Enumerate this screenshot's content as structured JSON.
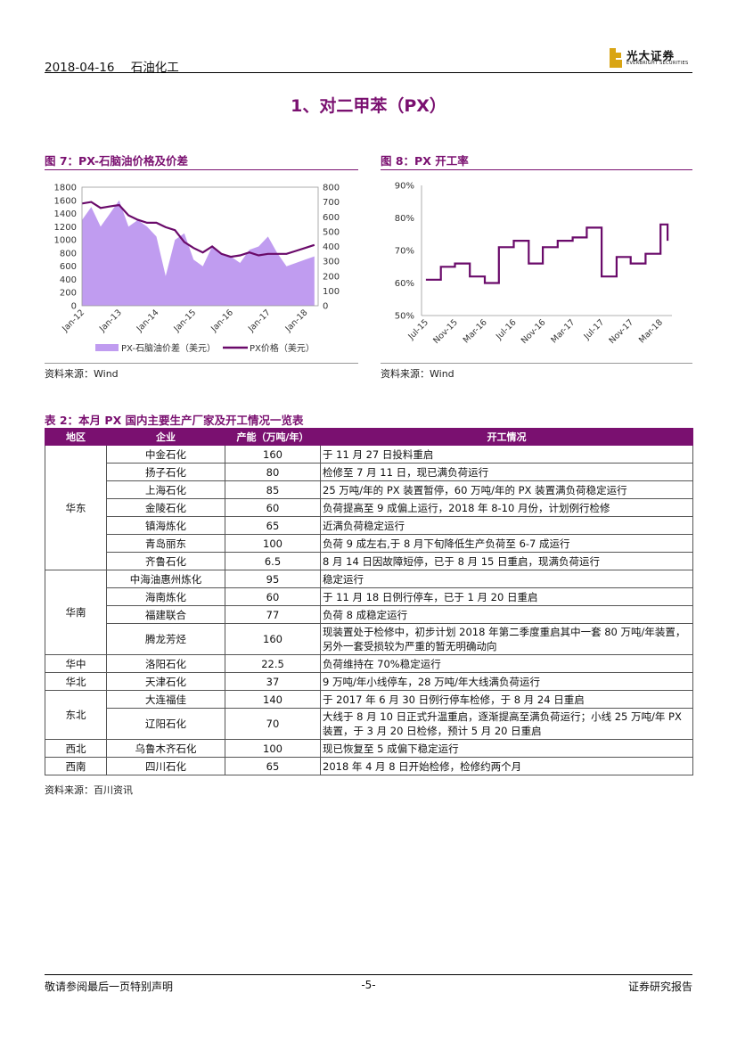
{
  "header": {
    "date": "2018-04-16",
    "category": "石油化工",
    "logo_cn": "光大证券",
    "logo_en": "EVERBRIGHT SECURITIES"
  },
  "section_title": "1、对二甲苯（PX）",
  "fig7": {
    "title": "图 7：PX-石脑油价格及价差",
    "source": "资料来源：Wind"
  },
  "fig8": {
    "title": "图 8：PX 开工率",
    "source": "资料来源：Wind"
  },
  "chart_data": [
    {
      "type": "area+line",
      "title": "",
      "x_ticks": [
        "Jan-12",
        "Jan-13",
        "Jan-14",
        "Jan-15",
        "Jan-16",
        "Jan-17",
        "Jan-18"
      ],
      "y_left_ticks": [
        "0",
        "200",
        "400",
        "600",
        "800",
        "1000",
        "1200",
        "1400",
        "1600",
        "1800"
      ],
      "y_left_range": [
        0,
        1800
      ],
      "y_right_ticks": [
        "0",
        "100",
        "200",
        "300",
        "400",
        "500",
        "600",
        "700",
        "800"
      ],
      "y_right_range": [
        0,
        800
      ],
      "series": [
        {
          "name": "PX-石脑油价差（美元）",
          "axis": "left",
          "color": "#c09cf0",
          "x": [
            2012.0,
            2012.25,
            2012.5,
            2012.75,
            2013.0,
            2013.25,
            2013.5,
            2013.75,
            2014.0,
            2014.25,
            2014.5,
            2014.75,
            2015.0,
            2015.25,
            2015.5,
            2015.75,
            2016.0,
            2016.25,
            2016.5,
            2016.75,
            2017.0,
            2017.25,
            2017.5,
            2017.75,
            2018.0,
            2018.25
          ],
          "values": [
            1300,
            1500,
            1200,
            1400,
            1600,
            1200,
            1300,
            1200,
            1050,
            450,
            1000,
            1100,
            700,
            600,
            900,
            800,
            750,
            650,
            850,
            900,
            1050,
            800,
            600,
            650,
            700,
            750
          ]
        },
        {
          "name": "PX价格（美元）",
          "axis": "right",
          "color": "#6a0a6a",
          "x": [
            2012.0,
            2012.25,
            2012.5,
            2012.75,
            2013.0,
            2013.25,
            2013.5,
            2013.75,
            2014.0,
            2014.25,
            2014.5,
            2014.75,
            2015.0,
            2015.25,
            2015.5,
            2015.75,
            2016.0,
            2016.25,
            2016.5,
            2016.75,
            2017.0,
            2017.25,
            2017.5,
            2017.75,
            2018.0,
            2018.25
          ],
          "values": [
            690,
            700,
            660,
            670,
            680,
            610,
            580,
            560,
            560,
            530,
            510,
            430,
            390,
            360,
            400,
            350,
            330,
            340,
            360,
            340,
            350,
            350,
            350,
            370,
            390,
            410
          ]
        }
      ]
    },
    {
      "type": "line",
      "title": "",
      "x_ticks": [
        "Jul-15",
        "Nov-15",
        "Mar-16",
        "Jul-16",
        "Nov-16",
        "Mar-17",
        "Jul-17",
        "Nov-17",
        "Mar-18"
      ],
      "y_ticks": [
        "50%",
        "60%",
        "70%",
        "80%",
        "90%"
      ],
      "y_range": [
        50,
        90
      ],
      "series": [
        {
          "name": "PX开工率",
          "color": "#6a0a6a",
          "x": [
            2015.5,
            2015.67,
            2015.83,
            2016.0,
            2016.17,
            2016.33,
            2016.5,
            2016.67,
            2016.83,
            2017.0,
            2017.17,
            2017.33,
            2017.5,
            2017.67,
            2017.83,
            2018.0,
            2018.17,
            2018.25
          ],
          "values": [
            61,
            65,
            66,
            62,
            60,
            71,
            73,
            66,
            71,
            73,
            74,
            77,
            62,
            68,
            66,
            69,
            78,
            73
          ]
        }
      ]
    }
  ],
  "table": {
    "title": "表 2：本月 PX 国内主要生产厂家及开工情况一览表",
    "headers": [
      "地区",
      "企业",
      "产能（万吨/年）",
      "开工情况"
    ],
    "groups": [
      {
        "region": "华东",
        "rows": [
          {
            "company": "中金石化",
            "capacity": "160",
            "status": "于 11 月 27 日投料重启"
          },
          {
            "company": "扬子石化",
            "capacity": "80",
            "status": "检修至 7 月 11 日，现已满负荷运行"
          },
          {
            "company": "上海石化",
            "capacity": "85",
            "status": "25 万吨/年的 PX 装置暂停，60 万吨/年的 PX 装置满负荷稳定运行"
          },
          {
            "company": "金陵石化",
            "capacity": "60",
            "status": "负荷提高至 9 成偏上运行，2018 年 8-10 月份，计划例行检修"
          },
          {
            "company": "镇海炼化",
            "capacity": "65",
            "status": "近满负荷稳定运行"
          },
          {
            "company": "青岛丽东",
            "capacity": "100",
            "status": "负荷 9 成左右,于 8 月下旬降低生产负荷至 6-7 成运行"
          },
          {
            "company": "齐鲁石化",
            "capacity": "6.5",
            "status": "8 月 14 日因故障短停，已于 8 月 15 日重启，现满负荷运行"
          }
        ]
      },
      {
        "region": "华南",
        "rows": [
          {
            "company": "中海油惠州炼化",
            "capacity": "95",
            "status": "稳定运行"
          },
          {
            "company": "海南炼化",
            "capacity": "60",
            "status": "于 11 月 18 日例行停车，已于 1 月 20 日重启"
          },
          {
            "company": "福建联合",
            "capacity": "77",
            "status": "负荷 8 成稳定运行"
          },
          {
            "company": "腾龙芳烃",
            "capacity": "160",
            "status": "现装置处于检修中，初步计划 2018 年第二季度重启其中一套 80 万吨/年装置，另外一套受损较为严重的暂无明确动向",
            "tall": true
          }
        ]
      },
      {
        "region": "华中",
        "rows": [
          {
            "company": "洛阳石化",
            "capacity": "22.5",
            "status": "负荷维持在 70%稳定运行"
          }
        ]
      },
      {
        "region": "华北",
        "rows": [
          {
            "company": "天津石化",
            "capacity": "37",
            "status": "9 万吨/年小线停车，28 万吨/年大线满负荷运行"
          }
        ]
      },
      {
        "region": "东北",
        "rows": [
          {
            "company": "大连福佳",
            "capacity": "140",
            "status": "于 2017 年 6 月 30 日例行停车检修，于 8 月 24 日重启"
          },
          {
            "company": "辽阳石化",
            "capacity": "70",
            "status": "大线于 8 月 10 日正式升温重启，逐渐提高至满负荷运行；小线 25 万吨/年 PX 装置，于 3 月 20 日检修，预计 5 月 20 日重启",
            "tall": true
          }
        ]
      },
      {
        "region": "西北",
        "rows": [
          {
            "company": "乌鲁木齐石化",
            "capacity": "100",
            "status": "现已恢复至 5 成偏下稳定运行"
          }
        ]
      },
      {
        "region": "西南",
        "rows": [
          {
            "company": "四川石化",
            "capacity": "65",
            "status": "2018 年 4 月 8 日开始检修，检修约两个月"
          }
        ]
      }
    ],
    "source": "资料来源：百川资讯"
  },
  "footer": {
    "left": "敬请参阅最后一页特别声明",
    "center": "-5-",
    "right": "证券研究报告"
  }
}
